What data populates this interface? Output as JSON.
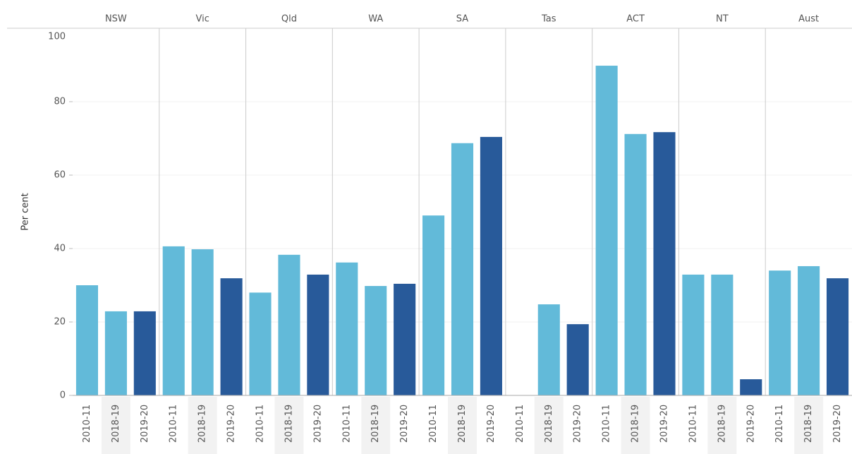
{
  "chart_data": {
    "type": "bar",
    "y_label": "Per cent",
    "categories": [
      "NSW",
      "Vic",
      "Qld",
      "WA",
      "SA",
      "Tas",
      "ACT",
      "NT",
      "Aust"
    ],
    "series": [
      {
        "name": "2010-11",
        "color": "#62bad9",
        "values": [
          30,
          40.6,
          28,
          36.2,
          49,
          null,
          89.8,
          32.9,
          34
        ]
      },
      {
        "name": "2018-19",
        "color": "#62bad9",
        "values": [
          22.9,
          39.8,
          38.3,
          29.8,
          68.7,
          24.8,
          71.2,
          32.9,
          35.2
        ]
      },
      {
        "name": "2019-20",
        "color": "#285a9a",
        "values": [
          22.9,
          31.9,
          32.9,
          30.4,
          70.4,
          19.4,
          71.7,
          4.4,
          31.9
        ]
      }
    ],
    "ylim": [
      0,
      100
    ],
    "yticks": [
      0,
      20,
      40,
      60,
      80,
      100
    ],
    "grid": true
  }
}
